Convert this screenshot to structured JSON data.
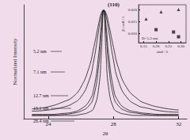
{
  "chart_data": [
    {
      "type": "line",
      "x_label": "2θ",
      "y_label": "Normalized Intensity",
      "annotations": [
        "(110)"
      ],
      "x": [
        23,
        24,
        25,
        25.5,
        26,
        26.5,
        26.8,
        27.1,
        27.25,
        27.4,
        27.55,
        27.7,
        28,
        28.3,
        28.8,
        29.5,
        30,
        31,
        32
      ],
      "series": [
        {
          "name": "5.2 nm",
          "color": "#1a1a1a",
          "values": [
            0.09,
            0.11,
            0.16,
            0.2,
            0.29,
            0.47,
            0.66,
            0.88,
            0.97,
            1,
            0.97,
            0.88,
            0.66,
            0.47,
            0.29,
            0.18,
            0.14,
            0.1,
            0.08
          ]
        },
        {
          "name": "7.1 nm",
          "color": "#1a1a1a",
          "values": [
            0.07,
            0.08,
            0.11,
            0.14,
            0.2,
            0.35,
            0.54,
            0.82,
            0.94,
            1,
            0.94,
            0.82,
            0.54,
            0.35,
            0.2,
            0.12,
            0.1,
            0.07,
            0.06
          ]
        },
        {
          "name": "12.7 nm",
          "color": "#1a1a1a",
          "values": [
            0.04,
            0.04,
            0.05,
            0.06,
            0.09,
            0.16,
            0.28,
            0.6,
            0.85,
            1,
            0.85,
            0.6,
            0.28,
            0.16,
            0.09,
            0.06,
            0.05,
            0.04,
            0.04
          ]
        },
        {
          "name": "15.1 nm",
          "color": "#1a1a1a",
          "values": [
            0.03,
            0.03,
            0.04,
            0.05,
            0.07,
            0.12,
            0.21,
            0.5,
            0.78,
            1,
            0.78,
            0.5,
            0.21,
            0.12,
            0.07,
            0.05,
            0.04,
            0.03,
            0.03
          ]
        },
        {
          "name": "26.4 nm",
          "color": "#1a1a1a",
          "values": [
            0.03,
            0.03,
            0.03,
            0.03,
            0.04,
            0.06,
            0.1,
            0.29,
            0.59,
            1,
            0.59,
            0.29,
            0.1,
            0.06,
            0.04,
            0.03,
            0.03,
            0.03,
            0.03
          ]
        }
      ],
      "xlim": [
        22.5,
        32.5
      ],
      "xticks": [
        24,
        28,
        32
      ],
      "ylim": [
        0,
        1.05
      ],
      "tick_labels": "x"
    },
    {
      "type": "scatter",
      "x_label": "sinθ / λ",
      "y_label": "β cosθ / λ",
      "annotations": [
        "D=5.3 nm"
      ],
      "series": [
        {
          "marker": "triangle",
          "color": "#1a1a1a",
          "x": [
            0.16,
            0.22,
            0.29
          ],
          "values": [
            0.016,
            0.019,
            0.02
          ]
        },
        {
          "marker": "rect",
          "color": "#1a1a1a",
          "x": [
            0.2,
            0.27,
            0.29
          ],
          "values": [
            0.0115,
            0.0105,
            0.0085
          ]
        }
      ],
      "xlim": [
        0.13,
        0.32
      ],
      "xticks": [
        0.15,
        {
          "value": 0.2,
          "label": "0.20"
        },
        0.25,
        {
          "value": 0.3,
          "label": "0.30"
        }
      ],
      "ylim": [
        0.006,
        0.022
      ],
      "yticks": [
        {
          "value": 0.01,
          "label": "0.010"
        },
        {
          "value": 0.015,
          "label": "0.015"
        },
        {
          "value": 0.02,
          "label": "0.020"
        }
      ]
    }
  ]
}
